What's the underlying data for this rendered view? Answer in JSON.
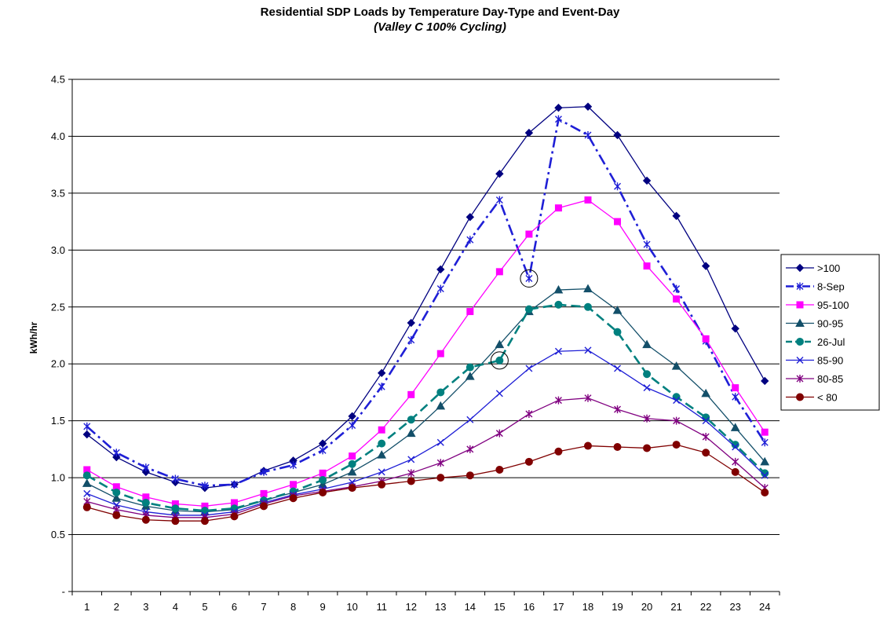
{
  "chart_data": {
    "type": "line",
    "title": "Residential SDP Loads by Temperature Day-Type and Event-Day",
    "subtitle": "(Valley C 100% Cycling)",
    "xlabel": "",
    "ylabel": "kWh/hr",
    "x": [
      1,
      2,
      3,
      4,
      5,
      6,
      7,
      8,
      9,
      10,
      11,
      12,
      13,
      14,
      15,
      16,
      17,
      18,
      19,
      20,
      21,
      22,
      23,
      24
    ],
    "xlim": [
      0.5,
      24.5
    ],
    "ylim": [
      0,
      4.5
    ],
    "yticks": [
      0,
      0.5,
      1.0,
      1.5,
      2.0,
      2.5,
      3.0,
      3.5,
      4.0,
      4.5
    ],
    "ytick_labels": [
      "-",
      "0.5",
      "1.0",
      "1.5",
      "2.0",
      "2.5",
      "3.0",
      "3.5",
      "4.0",
      "4.5"
    ],
    "grid": "horizontal",
    "legend_position": "right",
    "series": [
      {
        "name": ">100",
        "color": "#000080",
        "marker": "diamond",
        "dash": "solid",
        "values": [
          1.38,
          1.18,
          1.05,
          0.96,
          0.91,
          0.94,
          1.06,
          1.15,
          1.3,
          1.54,
          1.92,
          2.36,
          2.83,
          3.29,
          3.67,
          4.03,
          4.25,
          4.26,
          4.01,
          3.61,
          3.3,
          2.86,
          2.31,
          1.85
        ]
      },
      {
        "name": "8-Sep",
        "color": "#1F1FD6",
        "marker": "asterisk",
        "dash": "dashdot",
        "values": [
          1.45,
          1.22,
          1.09,
          0.99,
          0.93,
          0.94,
          1.05,
          1.11,
          1.24,
          1.46,
          1.8,
          2.21,
          2.66,
          3.09,
          3.44,
          2.75,
          4.15,
          4.01,
          3.56,
          3.05,
          2.66,
          2.2,
          1.71,
          1.31
        ]
      },
      {
        "name": "95-100",
        "color": "#FF00FF",
        "marker": "square",
        "dash": "solid",
        "values": [
          1.07,
          0.92,
          0.83,
          0.77,
          0.75,
          0.78,
          0.86,
          0.94,
          1.04,
          1.19,
          1.42,
          1.73,
          2.09,
          2.46,
          2.81,
          3.14,
          3.37,
          3.44,
          3.25,
          2.86,
          2.57,
          2.22,
          1.79,
          1.4
        ]
      },
      {
        "name": "90-95",
        "color": "#134F69",
        "marker": "triangle",
        "dash": "solid",
        "values": [
          0.95,
          0.82,
          0.75,
          0.71,
          0.7,
          0.72,
          0.8,
          0.87,
          0.94,
          1.05,
          1.2,
          1.39,
          1.63,
          1.89,
          2.17,
          2.46,
          2.65,
          2.66,
          2.47,
          2.17,
          1.98,
          1.74,
          1.44,
          1.14
        ]
      },
      {
        "name": "26-Jul",
        "color": "#00807F",
        "marker": "circle",
        "dash": "dash",
        "values": [
          1.02,
          0.87,
          0.78,
          0.73,
          0.71,
          0.73,
          0.8,
          0.88,
          0.98,
          1.12,
          1.3,
          1.51,
          1.75,
          1.97,
          2.03,
          2.48,
          2.52,
          2.5,
          2.28,
          1.91,
          1.71,
          1.53,
          1.29,
          1.04
        ]
      },
      {
        "name": "85-90",
        "color": "#1F1FD6",
        "marker": "x",
        "dash": "solid",
        "values": [
          0.86,
          0.76,
          0.7,
          0.67,
          0.67,
          0.7,
          0.78,
          0.85,
          0.9,
          0.96,
          1.05,
          1.16,
          1.31,
          1.51,
          1.74,
          1.96,
          2.11,
          2.12,
          1.96,
          1.79,
          1.68,
          1.5,
          1.27,
          1.02
        ]
      },
      {
        "name": "80-85",
        "color": "#800080",
        "marker": "asterisk",
        "dash": "solid",
        "values": [
          0.79,
          0.72,
          0.67,
          0.65,
          0.65,
          0.68,
          0.77,
          0.84,
          0.88,
          0.92,
          0.97,
          1.04,
          1.13,
          1.25,
          1.39,
          1.56,
          1.68,
          1.7,
          1.6,
          1.52,
          1.5,
          1.36,
          1.14,
          0.91
        ]
      },
      {
        "name": "< 80",
        "color": "#800000",
        "marker": "circle",
        "dash": "solid",
        "values": [
          0.74,
          0.67,
          0.63,
          0.62,
          0.62,
          0.66,
          0.75,
          0.82,
          0.87,
          0.91,
          0.94,
          0.97,
          1.0,
          1.02,
          1.07,
          1.14,
          1.23,
          1.28,
          1.27,
          1.26,
          1.29,
          1.22,
          1.05,
          0.87
        ]
      }
    ],
    "annotations": [
      {
        "type": "circle",
        "x": 16,
        "y": 2.75
      },
      {
        "type": "circle",
        "x": 15,
        "y": 2.03
      }
    ]
  }
}
